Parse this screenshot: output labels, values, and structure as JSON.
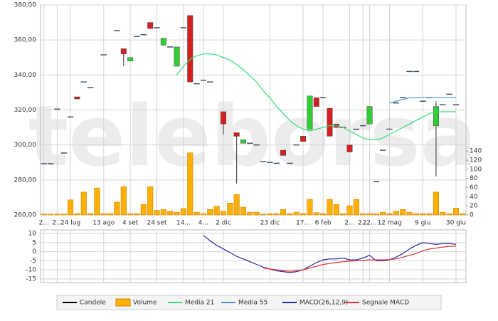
{
  "watermark": "teleborsa",
  "chart_data": [
    {
      "type": "candlestick",
      "categories": [
        "2...",
        null,
        "2...",
        null,
        "24 lug",
        null,
        null,
        null,
        null,
        "13 ago",
        null,
        null,
        null,
        "4 set",
        null,
        null,
        null,
        "24 set",
        null,
        null,
        null,
        "14...",
        null,
        null,
        "4...",
        null,
        null,
        "2 dic",
        null,
        null,
        null,
        null,
        null,
        null,
        "23 dic",
        null,
        null,
        null,
        null,
        "17...",
        null,
        null,
        "6 feb",
        null,
        null,
        null,
        "2...",
        null,
        "2...",
        "22...",
        null,
        null,
        "12 mag",
        null,
        null,
        null,
        null,
        "9 giu",
        null,
        null,
        null,
        null,
        "30 giu",
        null
      ],
      "ylim": [
        260,
        380
      ],
      "yticks": [
        {
          "value": 260,
          "label": "260,00"
        },
        {
          "value": 280,
          "label": "280,00"
        },
        {
          "value": 300,
          "label": "300,00"
        },
        {
          "value": 320,
          "label": "320,00"
        },
        {
          "value": 340,
          "label": "340,00"
        },
        {
          "value": 360,
          "label": "360,00"
        },
        {
          "value": 380,
          "label": "380,00"
        }
      ],
      "y2lim": [
        0,
        460
      ],
      "y2ticks": [
        0,
        20,
        40,
        60,
        80,
        100,
        120,
        140
      ],
      "grid": true,
      "series": [
        {
          "name": "Candele",
          "type": "candlestick",
          "color": "#000000",
          "up_color": "#33cc33",
          "down_color": "#d42020",
          "ohlc": [
            [
              289.3,
              289.3,
              289.3,
              289.3
            ],
            [
              289.3,
              289.3,
              289.3,
              289.3
            ],
            [
              320.5,
              320.5,
              320.5,
              320.5
            ],
            [
              295.4,
              295.4,
              295.4,
              295.4
            ],
            [
              316,
              316,
              316,
              316
            ],
            [
              327.5,
              327.5,
              326.3,
              326.3
            ],
            [
              336,
              336,
              336,
              336
            ],
            [
              332.8,
              332.8,
              332.8,
              332.8
            ],
            null,
            [
              351.5,
              351.5,
              351.5,
              351.5
            ],
            null,
            [
              365.4,
              365.4,
              365.4,
              365.4
            ],
            [
              355,
              355,
              345,
              352
            ],
            [
              348,
              350,
              348,
              350
            ],
            [
              362,
              362,
              362,
              362
            ],
            [
              363,
              363,
              363,
              363
            ],
            [
              370,
              370,
              366.5,
              366.5
            ],
            [
              367,
              367,
              367,
              367
            ],
            [
              357,
              361,
              357,
              361
            ],
            [
              356,
              356,
              356,
              356
            ],
            [
              345,
              356,
              345,
              356
            ],
            [
              367,
              367,
              367,
              367
            ],
            [
              374,
              374,
              336,
              336
            ],
            [
              335,
              335,
              335,
              335
            ],
            [
              337,
              337,
              337,
              337
            ],
            [
              336,
              336,
              336,
              336
            ],
            null,
            [
              319,
              319,
              306,
              312
            ],
            null,
            [
              307,
              307,
              278,
              305
            ],
            [
              301,
              303,
              301,
              303
            ],
            [
              301,
              301,
              301,
              301
            ],
            [
              300,
              300,
              300,
              300
            ],
            [
              290.5,
              290.5,
              290.5,
              290.5
            ],
            [
              290,
              290,
              290,
              290
            ],
            [
              289.5,
              289.5,
              289.5,
              289.5
            ],
            [
              297,
              297,
              294,
              294
            ],
            [
              289.5,
              289.5,
              289.5,
              289.5
            ],
            [
              300,
              300,
              300,
              300
            ],
            [
              305,
              305,
              302,
              302
            ],
            [
              309,
              328,
              309,
              328
            ],
            [
              327,
              327,
              322,
              322
            ],
            [
              327,
              327,
              327,
              327
            ],
            [
              321,
              321,
              305,
              305
            ],
            [
              312,
              312,
              310,
              310
            ],
            [
              310,
              310,
              310,
              310
            ],
            [
              300,
              300,
              296,
              296
            ],
            [
              309,
              309,
              309,
              309
            ],
            [
              311,
              311,
              311,
              311
            ],
            [
              312,
              322,
              312,
              322
            ],
            [
              279,
              279,
              279,
              279
            ],
            [
              297,
              297,
              297,
              297
            ],
            [
              309,
              309,
              309,
              309
            ],
            [
              324,
              324,
              324,
              324
            ],
            [
              327,
              327,
              327,
              327
            ],
            [
              342,
              342,
              342,
              342
            ],
            [
              342,
              342,
              342,
              342
            ],
            [
              325,
              325,
              325,
              325
            ],
            [
              327,
              327,
              327,
              327
            ],
            [
              311,
              325,
              282,
              322
            ],
            [
              323,
              323,
              323,
              323
            ],
            [
              329,
              329,
              329,
              329
            ],
            [
              323,
              323,
              323,
              323
            ],
            null
          ]
        },
        {
          "name": "Volume",
          "type": "bar",
          "axis": "y2",
          "color": "#ffb000",
          "values": [
            2,
            2,
            2,
            2,
            33,
            3,
            50,
            3,
            59,
            3,
            3,
            28,
            62,
            3,
            3,
            23,
            62,
            10,
            12,
            8,
            6,
            14,
            136,
            6,
            3,
            12,
            19,
            8,
            26,
            45,
            17,
            6,
            6,
            2,
            3,
            3,
            12,
            3,
            6,
            3,
            34,
            5,
            3,
            34,
            23,
            3,
            20,
            34,
            3,
            3,
            3,
            6,
            3,
            8,
            12,
            6,
            3,
            3,
            3,
            50,
            6,
            3,
            15,
            3
          ]
        },
        {
          "name": "Media 21",
          "type": "line",
          "color": "#33dd77",
          "values": [
            null,
            null,
            null,
            null,
            null,
            null,
            null,
            null,
            null,
            null,
            null,
            null,
            null,
            null,
            null,
            null,
            null,
            null,
            null,
            null,
            340,
            345,
            349,
            351,
            352,
            352,
            351.5,
            350,
            348.5,
            346,
            343,
            339.5,
            336,
            331,
            327,
            322,
            318,
            314,
            311,
            309,
            308,
            309,
            310,
            311,
            311,
            310,
            308,
            306,
            304,
            303,
            303,
            304,
            306,
            308,
            310,
            312,
            314,
            316,
            318,
            319,
            319,
            319,
            319,
            null
          ]
        },
        {
          "name": "Media 55",
          "type": "line",
          "color": "#4a90d9",
          "values": [
            null,
            null,
            null,
            null,
            null,
            null,
            null,
            null,
            null,
            null,
            null,
            null,
            null,
            null,
            null,
            null,
            null,
            null,
            null,
            null,
            null,
            null,
            null,
            null,
            null,
            null,
            null,
            null,
            null,
            null,
            null,
            null,
            null,
            null,
            null,
            null,
            null,
            null,
            null,
            null,
            null,
            null,
            null,
            null,
            null,
            null,
            null,
            null,
            null,
            null,
            null,
            null,
            324,
            325,
            326,
            327,
            327,
            327,
            327,
            327,
            327,
            327,
            327,
            null
          ]
        }
      ]
    },
    {
      "type": "line",
      "ylim": [
        -17,
        12
      ],
      "yticks": [
        10,
        5,
        0,
        -5,
        -10,
        -15
      ],
      "grid": true,
      "series": [
        {
          "name": "MACD(26,12,9)",
          "color": "#2a2aa0",
          "values": [
            null,
            null,
            null,
            null,
            null,
            null,
            null,
            null,
            null,
            null,
            null,
            null,
            null,
            null,
            null,
            null,
            null,
            null,
            null,
            null,
            null,
            null,
            null,
            null,
            9,
            6,
            3.5,
            1.5,
            -0.5,
            -2.5,
            -4,
            -5.5,
            -7,
            -8.5,
            -9.5,
            -10.5,
            -11,
            -11.5,
            -11,
            -10,
            -8,
            -6,
            -4.5,
            -4,
            -4,
            -3.5,
            -4.5,
            -4.5,
            -3.5,
            -2,
            -5,
            -5,
            -4.5,
            -3,
            -1,
            1.5,
            3.5,
            5,
            4.5,
            4,
            4.5,
            4.5,
            4,
            null
          ]
        },
        {
          "name": "Segnale MACD",
          "color": "#dd3333",
          "values": [
            null,
            null,
            null,
            null,
            null,
            null,
            null,
            null,
            null,
            null,
            null,
            null,
            null,
            null,
            null,
            null,
            null,
            null,
            null,
            null,
            null,
            null,
            null,
            null,
            null,
            null,
            null,
            null,
            null,
            null,
            null,
            null,
            null,
            -9,
            -9.5,
            -10,
            -10.5,
            -10.8,
            -10.5,
            -10,
            -9,
            -8,
            -7,
            -6.5,
            -6,
            -5.5,
            -5.2,
            -5,
            -4.8,
            -4.5,
            -4.5,
            -4.5,
            -4.3,
            -4,
            -3,
            -2,
            -1,
            0.5,
            1.5,
            2,
            2.5,
            3,
            3,
            null
          ]
        }
      ]
    }
  ]
}
